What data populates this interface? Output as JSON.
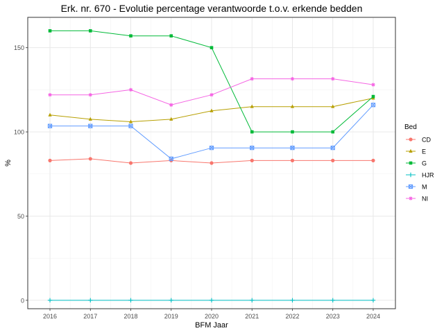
{
  "chart_data": {
    "type": "line",
    "title": "Erk. nr. 670 - Evolutie percentage verantwoorde t.o.v. erkende bedden",
    "xlabel": "BFM Jaar",
    "ylabel": "%",
    "x": [
      2016,
      2017,
      2018,
      2019,
      2020,
      2021,
      2022,
      2023,
      2024
    ],
    "x_ticks": [
      "2016",
      "2017",
      "2018",
      "2019",
      "2020",
      "2021",
      "2022",
      "2023",
      "2024"
    ],
    "y_ticks": [
      "0",
      "50",
      "100",
      "150"
    ],
    "ylim": [
      -5,
      168
    ],
    "grid": true,
    "legend": {
      "title": "Bed",
      "position": "right"
    },
    "series": [
      {
        "name": "CD",
        "color": "#F8766D",
        "marker": "circle",
        "values": [
          83,
          84,
          81.5,
          83,
          81.5,
          83,
          83,
          83,
          83
        ]
      },
      {
        "name": "E",
        "color": "#B79F00",
        "marker": "triangle",
        "values": [
          110,
          107.5,
          106,
          107.5,
          112.5,
          115,
          115,
          115,
          120
        ]
      },
      {
        "name": "G",
        "color": "#00BA38",
        "marker": "square",
        "values": [
          160,
          160,
          157,
          157,
          150,
          100,
          100,
          100,
          121
        ]
      },
      {
        "name": "HJR",
        "color": "#00BFC4",
        "marker": "plus",
        "values": [
          0,
          0,
          0,
          0,
          0,
          0,
          0,
          0,
          0
        ]
      },
      {
        "name": "M",
        "color": "#619CFF",
        "marker": "boxsquare",
        "values": [
          103.5,
          103.5,
          103.5,
          84,
          90.5,
          90.5,
          90.5,
          90.5,
          116
        ]
      },
      {
        "name": "NI",
        "color": "#F564E3",
        "marker": "asterisk",
        "values": [
          122,
          122,
          125,
          116,
          122,
          131.5,
          131.5,
          131.5,
          128
        ]
      }
    ]
  }
}
